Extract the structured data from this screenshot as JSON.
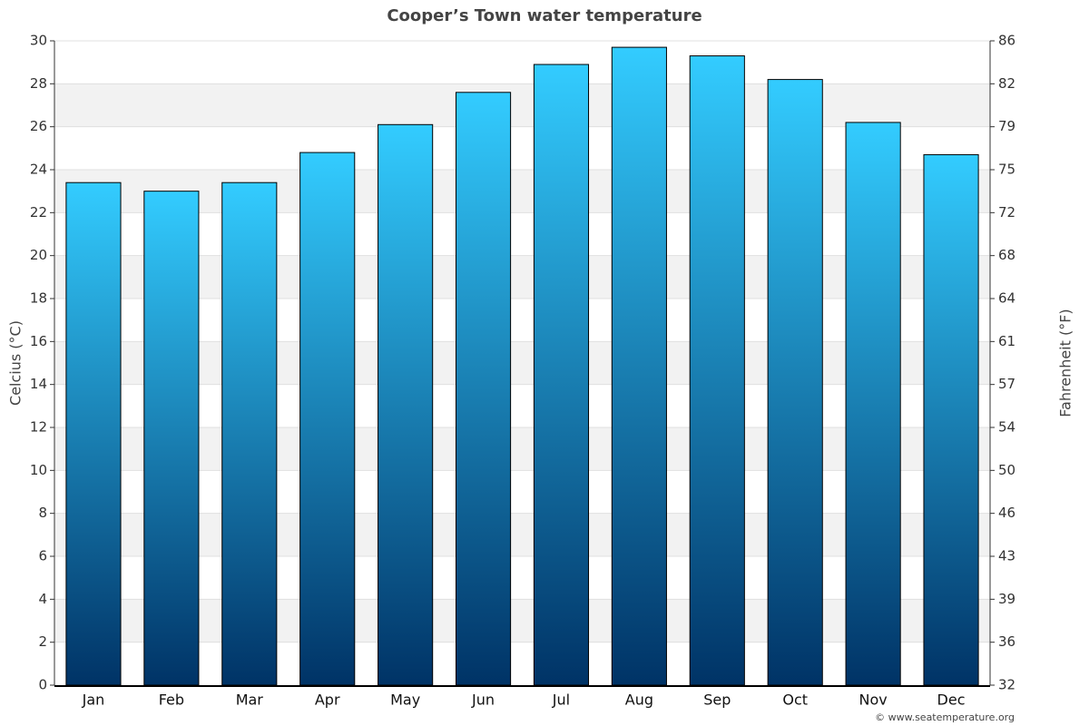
{
  "chart_data": {
    "type": "bar",
    "title": "Cooper’s Town water temperature",
    "y_label": "Celcius (°C)",
    "y2_label": "Fahrenheit (°F)",
    "source": "© www.seatemperature.org",
    "categories": [
      "Jan",
      "Feb",
      "Mar",
      "Apr",
      "May",
      "Jun",
      "Jul",
      "Aug",
      "Sep",
      "Oct",
      "Nov",
      "Dec"
    ],
    "values": [
      23.4,
      23.0,
      23.4,
      24.8,
      26.1,
      27.6,
      28.9,
      29.7,
      29.3,
      28.2,
      26.2,
      24.7
    ],
    "color_top": "#33ccff",
    "color_bottom": "#003366",
    "ylim": [
      0,
      30
    ],
    "yticks": [
      0,
      2,
      4,
      6,
      8,
      10,
      12,
      14,
      16,
      18,
      20,
      22,
      24,
      26,
      28,
      30
    ],
    "y2lim": [
      32,
      86
    ],
    "y2ticks": [
      32,
      {
        "value": 35.6,
        "label": "36"
      },
      {
        "value": 39.2,
        "label": "39"
      },
      {
        "value": 42.8,
        "label": "43"
      },
      {
        "value": 46.4,
        "label": "46"
      },
      50,
      {
        "value": 53.6,
        "label": "54"
      },
      {
        "value": 57.2,
        "label": "57"
      },
      {
        "value": 60.8,
        "label": "61"
      },
      {
        "value": 64.4,
        "label": "64"
      },
      68,
      {
        "value": 71.6,
        "label": "72"
      },
      {
        "value": 75.2,
        "label": "75"
      },
      {
        "value": 78.8,
        "label": "79"
      },
      {
        "value": 82.4,
        "label": "82"
      },
      86
    ],
    "grid": true
  }
}
